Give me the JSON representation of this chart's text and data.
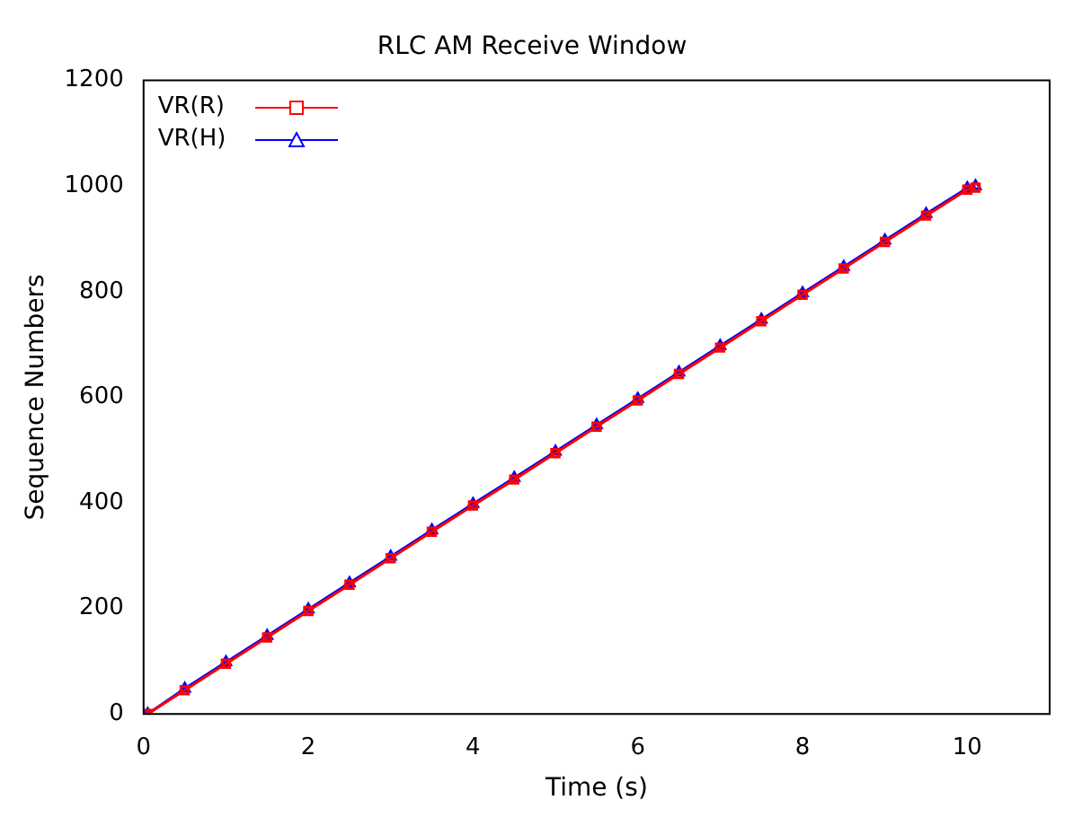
{
  "chart_data": {
    "type": "line",
    "title": "RLC AM Receive Window",
    "xlabel": "Time (s)",
    "ylabel": "Sequence Numbers",
    "x": [
      0.05,
      0.5,
      1,
      1.5,
      2,
      2.5,
      3,
      3.5,
      4,
      4.5,
      5,
      5.5,
      6,
      6.5,
      7,
      7.5,
      8,
      8.5,
      9,
      9.5,
      10,
      10.1
    ],
    "series": [
      {
        "name": "VR(R)",
        "color": "#ff0000",
        "marker": "square",
        "values": [
          0,
          45,
          95,
          145,
          195,
          245,
          295,
          345,
          395,
          444,
          494,
          544,
          594,
          644,
          694,
          744,
          794,
          844,
          894,
          944,
          993,
          997
        ]
      },
      {
        "name": "VR(H)",
        "color": "#0000ff",
        "marker": "triangle",
        "values": [
          0,
          48,
          98,
          148,
          198,
          248,
          298,
          348,
          398,
          447,
          497,
          547,
          597,
          647,
          697,
          747,
          797,
          847,
          897,
          947,
          996,
          1000
        ]
      }
    ],
    "xlim": [
      0,
      11
    ],
    "xticks": [
      0,
      2,
      4,
      6,
      8,
      10
    ],
    "ylim": [
      0,
      1200
    ],
    "yticks": [
      0,
      200,
      400,
      600,
      800,
      1000,
      1200
    ],
    "grid": false,
    "legend": "top left",
    "line_style": "solid"
  }
}
